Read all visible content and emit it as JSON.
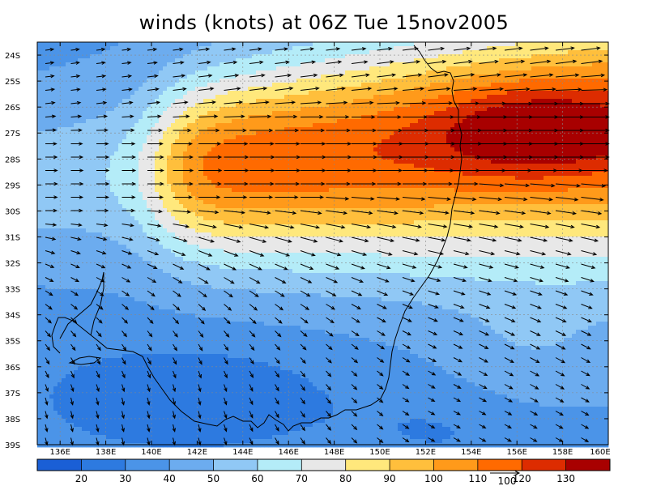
{
  "title": "winds (knots) at 06Z Tue 15nov2005",
  "map": {
    "lon_range": [
      135,
      160
    ],
    "lat_range": [
      -39,
      -23.5
    ],
    "lat_labels": [
      {
        "text": "24S",
        "lat": -24
      },
      {
        "text": "25S",
        "lat": -25
      },
      {
        "text": "26S",
        "lat": -26
      },
      {
        "text": "27S",
        "lat": -27
      },
      {
        "text": "28S",
        "lat": -28
      },
      {
        "text": "29S",
        "lat": -29
      },
      {
        "text": "30S",
        "lat": -30
      },
      {
        "text": "31S",
        "lat": -31
      },
      {
        "text": "32S",
        "lat": -32
      },
      {
        "text": "33S",
        "lat": -33
      },
      {
        "text": "34S",
        "lat": -34
      },
      {
        "text": "35S",
        "lat": -35
      },
      {
        "text": "36S",
        "lat": -36
      },
      {
        "text": "37S",
        "lat": -37
      },
      {
        "text": "38S",
        "lat": -38
      },
      {
        "text": "39S",
        "lat": -39
      }
    ],
    "lon_labels": [
      {
        "text": "136E",
        "lon": 136
      },
      {
        "text": "138E",
        "lon": 138
      },
      {
        "text": "140E",
        "lon": 140
      },
      {
        "text": "142E",
        "lon": 142
      },
      {
        "text": "144E",
        "lon": 144
      },
      {
        "text": "146E",
        "lon": 146
      },
      {
        "text": "148E",
        "lon": 148
      },
      {
        "text": "150E",
        "lon": 150
      },
      {
        "text": "152E",
        "lon": 152
      },
      {
        "text": "154E",
        "lon": 154
      },
      {
        "text": "156E",
        "lon": 156
      },
      {
        "text": "158E",
        "lon": 158
      },
      {
        "text": "160E",
        "lon": 160
      }
    ],
    "grid": true
  },
  "colorbar": {
    "colors": [
      "#1a5fd6",
      "#2d7ae0",
      "#4b94e8",
      "#6cacef",
      "#90c8f5",
      "#b4ecf8",
      "#e8e8e8",
      "#ffe87c",
      "#ffbf3c",
      "#ff9a1a",
      "#ff6a00",
      "#dd2c00",
      "#a80000"
    ],
    "labels": [
      "20",
      "30",
      "40",
      "50",
      "60",
      "70",
      "80",
      "90",
      "100",
      "110",
      "120",
      "130"
    ],
    "reference_vector_label": "100"
  },
  "coastline_color": "#000000"
}
